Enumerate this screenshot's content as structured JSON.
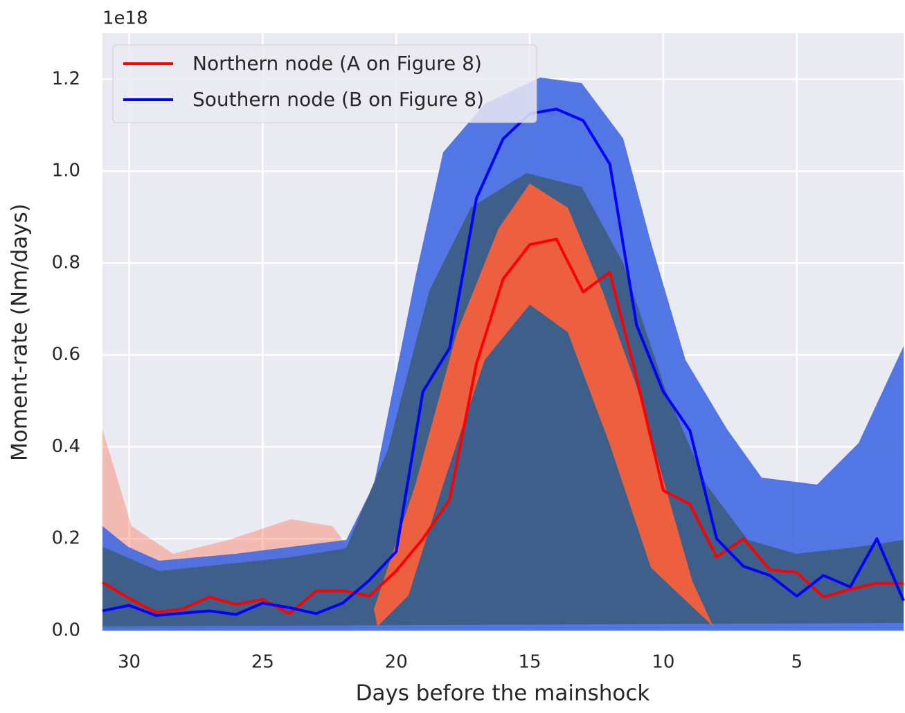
{
  "chart_data": {
    "type": "line",
    "offset_text": "1e18",
    "xlabel": "Days before the mainshock",
    "ylabel": "Moment-rate (Nm/days)",
    "x": [
      31,
      30,
      29,
      28,
      27,
      26,
      25,
      24,
      23,
      22,
      21,
      20,
      19,
      18,
      17,
      16,
      15,
      14,
      13,
      12,
      11,
      10,
      9,
      8,
      7,
      6,
      5,
      4,
      3,
      2,
      1
    ],
    "series": [
      {
        "name": "Northern node (A on Figure 8)",
        "color": "#ff0000",
        "values": [
          0.105,
          0.07,
          0.04,
          0.047,
          0.073,
          0.057,
          0.068,
          0.037,
          0.086,
          0.087,
          0.075,
          0.13,
          0.2,
          0.285,
          0.58,
          0.765,
          0.84,
          0.852,
          0.737,
          0.78,
          0.55,
          0.305,
          0.275,
          0.16,
          0.2,
          0.132,
          0.127,
          0.073,
          0.09,
          0.103,
          0.103
        ]
      },
      {
        "name": "Southern node (B on Figure 8)",
        "color": "#0000ff",
        "values": [
          0.043,
          0.055,
          0.033,
          0.038,
          0.043,
          0.035,
          0.06,
          0.05,
          0.037,
          0.06,
          0.11,
          0.172,
          0.52,
          0.615,
          0.94,
          1.07,
          1.125,
          1.135,
          1.11,
          1.015,
          0.665,
          0.52,
          0.435,
          0.2,
          0.14,
          0.12,
          0.075,
          0.12,
          0.095,
          0.2,
          0.065
        ]
      }
    ],
    "xlim": [
      31,
      1
    ],
    "ylim": [
      0,
      1.3
    ],
    "xticks": [
      30,
      25,
      20,
      15,
      10,
      5
    ],
    "yticks": [
      {
        "value": 0,
        "label": "0.0"
      },
      0.2,
      0.4,
      0.6,
      0.8,
      {
        "value": 1,
        "label": "1.0"
      },
      1.2
    ],
    "grid": true,
    "legend": "upper left"
  }
}
